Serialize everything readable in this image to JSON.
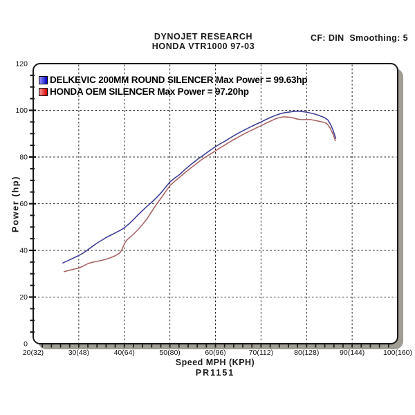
{
  "header": {
    "brand": "DYNOJET RESEARCH",
    "subtitle": "HONDA VTR1000 97-03",
    "correction_info": "CF: DIN  Smoothing: 5"
  },
  "chart_data": {
    "type": "line",
    "title": "DYNOJET RESEARCH",
    "subtitle": "HONDA VTR1000 97-03",
    "xlabel": "Speed MPH (KPH)",
    "ylabel": "Power (hp)",
    "footnote": "PR1151",
    "xlim": [
      20,
      100
    ],
    "ylim": [
      0,
      120
    ],
    "x_tick_values": [
      20,
      30,
      40,
      50,
      60,
      70,
      80,
      90,
      100
    ],
    "x_tick_labels": [
      "20(32)",
      "30(48)",
      "40(64)",
      "50(80)",
      "60(96)",
      "70(112)",
      "80(128)",
      "90(144)",
      "100(160)"
    ],
    "x_minor_tick_step": 2,
    "y_tick_values": [
      0,
      20,
      40,
      60,
      80,
      100,
      120
    ],
    "y_minor_tick_step": 5,
    "grid": {
      "style": "dashed",
      "h_lines": [
        20,
        40,
        60,
        80,
        100
      ],
      "v_lines": [
        30,
        40,
        50,
        60,
        70,
        80,
        90
      ]
    },
    "legend_position": "top-left",
    "series": [
      {
        "name": "DELKEVIC 200MM ROUND SILENCER",
        "legend_label": "DELKEVIC 200MM ROUND SILENCER Max Power = 99.63hp",
        "max_power": "99.63hp",
        "color": "#3f3f99",
        "swatch_colors": [
          "#9898ff",
          "#0000c8"
        ],
        "points_mph_hp": [
          [
            26.5,
            34.6
          ],
          [
            27.5,
            35.5
          ],
          [
            28.5,
            36.4
          ],
          [
            30,
            37.8
          ],
          [
            31,
            38.9
          ],
          [
            32,
            40.3
          ],
          [
            33,
            41.7
          ],
          [
            34,
            43.1
          ],
          [
            35,
            44.3
          ],
          [
            36,
            45.5
          ],
          [
            37,
            46.5
          ],
          [
            38,
            47.5
          ],
          [
            39,
            48.5
          ],
          [
            40,
            49.7
          ],
          [
            41,
            51.3
          ],
          [
            42,
            53.2
          ],
          [
            43,
            55.2
          ],
          [
            44,
            57.1
          ],
          [
            45,
            58.9
          ],
          [
            46,
            60.6
          ],
          [
            47,
            62.5
          ],
          [
            48,
            64.5
          ],
          [
            49,
            66.9
          ],
          [
            50,
            69.3
          ],
          [
            51,
            70.9
          ],
          [
            52,
            72.3
          ],
          [
            53,
            74.1
          ],
          [
            54,
            75.8
          ],
          [
            55,
            77.4
          ],
          [
            56,
            78.9
          ],
          [
            57,
            80.3
          ],
          [
            58,
            81.7
          ],
          [
            59,
            83.1
          ],
          [
            60,
            84.4
          ],
          [
            61,
            85.6
          ],
          [
            62,
            86.7
          ],
          [
            63,
            87.9
          ],
          [
            64,
            89.1
          ],
          [
            65,
            90.2
          ],
          [
            66,
            91.2
          ],
          [
            67,
            92.2
          ],
          [
            68,
            93.2
          ],
          [
            69,
            94.1
          ],
          [
            70,
            95.0
          ],
          [
            71,
            96.0
          ],
          [
            72,
            96.9
          ],
          [
            73,
            97.7
          ],
          [
            74,
            98.4
          ],
          [
            75,
            98.9
          ],
          [
            76,
            99.2
          ],
          [
            77,
            99.5
          ],
          [
            78,
            99.63
          ],
          [
            79,
            99.5
          ],
          [
            80,
            99.2
          ],
          [
            81,
            98.8
          ],
          [
            82,
            98.3
          ],
          [
            83,
            97.6
          ],
          [
            84,
            96.8
          ],
          [
            84.7,
            95.8
          ],
          [
            85.2,
            94.2
          ],
          [
            85.8,
            91.5
          ],
          [
            86.4,
            88.0
          ]
        ]
      },
      {
        "name": "HONDA OEM SILENCER",
        "legend_label": "HONDA OEM SILENCER Max Power = 97.20hp",
        "max_power": "97.20hp",
        "color": "#aa6565",
        "swatch_colors": [
          "#ff9898",
          "#d40000"
        ],
        "points_mph_hp": [
          [
            26.8,
            30.9
          ],
          [
            28,
            31.5
          ],
          [
            29,
            32.0
          ],
          [
            30,
            32.4
          ],
          [
            31,
            33.3
          ],
          [
            32,
            34.3
          ],
          [
            33,
            34.9
          ],
          [
            34,
            35.3
          ],
          [
            35,
            35.7
          ],
          [
            36,
            36.2
          ],
          [
            37,
            36.9
          ],
          [
            38,
            37.7
          ],
          [
            39,
            38.9
          ],
          [
            39.5,
            40.5
          ],
          [
            40,
            42.8
          ],
          [
            40.5,
            44.3
          ],
          [
            41,
            45.2
          ],
          [
            42,
            46.9
          ],
          [
            43,
            48.9
          ],
          [
            44,
            51.1
          ],
          [
            45,
            53.6
          ],
          [
            46,
            56.6
          ],
          [
            47,
            59.6
          ],
          [
            48,
            62.2
          ],
          [
            49,
            65.0
          ],
          [
            50,
            67.7
          ],
          [
            51,
            69.5
          ],
          [
            52,
            71.1
          ],
          [
            53,
            72.8
          ],
          [
            54,
            74.4
          ],
          [
            55,
            75.9
          ],
          [
            56,
            77.4
          ],
          [
            57,
            78.9
          ],
          [
            58,
            80.2
          ],
          [
            59,
            81.4
          ],
          [
            60,
            82.6
          ],
          [
            61,
            83.9
          ],
          [
            62,
            85.1
          ],
          [
            63,
            86.3
          ],
          [
            64,
            87.4
          ],
          [
            65,
            88.5
          ],
          [
            66,
            89.6
          ],
          [
            67,
            90.6
          ],
          [
            68,
            91.5
          ],
          [
            69,
            92.5
          ],
          [
            70,
            93.4
          ],
          [
            71,
            94.4
          ],
          [
            72,
            95.3
          ],
          [
            73,
            96.2
          ],
          [
            74,
            96.9
          ],
          [
            75,
            97.2
          ],
          [
            76,
            97.1
          ],
          [
            77,
            96.8
          ],
          [
            78,
            96.2
          ],
          [
            79,
            96.0
          ],
          [
            80,
            96.1
          ],
          [
            81,
            96.0
          ],
          [
            82,
            95.6
          ],
          [
            83,
            95.2
          ],
          [
            84,
            94.8
          ],
          [
            84.6,
            94.0
          ],
          [
            85.2,
            92.3
          ],
          [
            85.8,
            89.8
          ],
          [
            86.3,
            87.0
          ]
        ]
      }
    ]
  }
}
